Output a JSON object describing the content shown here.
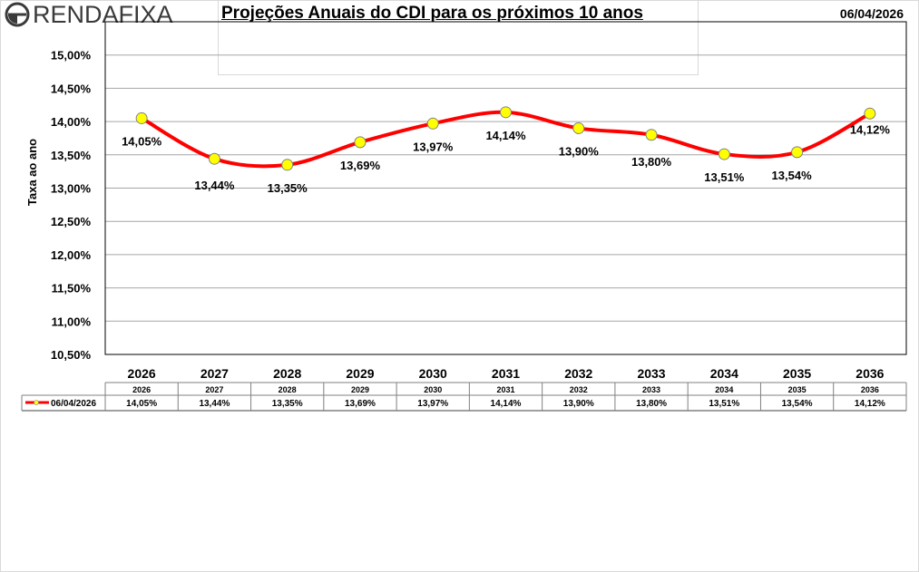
{
  "header": {
    "logo_text": "RENDAFIXA",
    "title": "Projeções Anuais do CDI para os próximos 10 anos",
    "date": "06/04/2026"
  },
  "colors": {
    "line": "#ff0000",
    "marker_fill": "#ffff00",
    "marker_stroke": "#808080",
    "grid": "#a6a6a6"
  },
  "chart_data": {
    "type": "line",
    "title": "Projeções Anuais do CDI para os próximos 10 anos",
    "xlabel": "",
    "ylabel": "Taxa ao ano",
    "categories": [
      "2026",
      "2027",
      "2028",
      "2029",
      "2030",
      "2031",
      "2032",
      "2033",
      "2034",
      "2035",
      "2036"
    ],
    "series": [
      {
        "name": "06/04/2026",
        "values": [
          14.05,
          13.44,
          13.35,
          13.69,
          13.97,
          14.14,
          13.9,
          13.8,
          13.51,
          13.54,
          14.12
        ],
        "labels": [
          "14,05%",
          "13,44%",
          "13,35%",
          "13,69%",
          "13,97%",
          "14,14%",
          "13,90%",
          "13,80%",
          "13,51%",
          "13,54%",
          "14,12%"
        ]
      }
    ],
    "ylim": [
      10.5,
      15.5
    ],
    "yticks": [
      15.0,
      14.5,
      14.0,
      13.5,
      13.0,
      12.5,
      12.0,
      11.5,
      11.0,
      10.5
    ],
    "ytick_labels": [
      "15,00%",
      "14,50%",
      "14,00%",
      "13,50%",
      "13,00%",
      "12,50%",
      "12,00%",
      "11,50%",
      "11,00%",
      "10,50%"
    ],
    "grid": true,
    "smooth": true,
    "legend": "data-table-below"
  },
  "data_table": {
    "series_label": "06/04/2026"
  }
}
